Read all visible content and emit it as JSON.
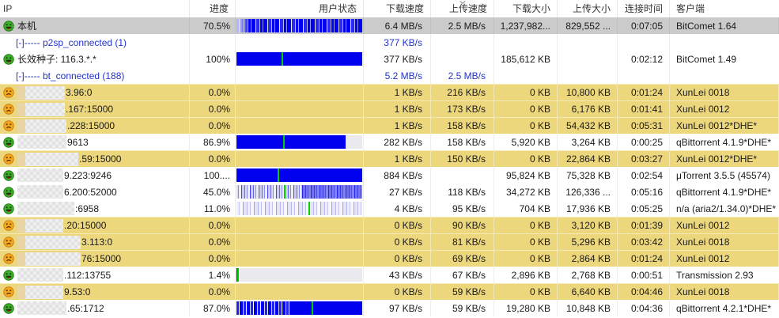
{
  "header": {
    "columns": [
      {
        "key": "ip",
        "label": "IP",
        "align": "left"
      },
      {
        "key": "progress",
        "label": "进度",
        "align": "right"
      },
      {
        "key": "status",
        "label": "用户状态",
        "align": "right"
      },
      {
        "key": "dspeed",
        "label": "下载速度",
        "align": "right",
        "sorted": true
      },
      {
        "key": "uspeed",
        "label": "上传速度",
        "align": "right",
        "sort_indicator": true
      },
      {
        "key": "dsize",
        "label": "下载大小",
        "align": "right"
      },
      {
        "key": "usize",
        "label": "上传大小",
        "align": "right"
      },
      {
        "key": "time",
        "label": "连接时间",
        "align": "right"
      },
      {
        "key": "client",
        "label": "客户端",
        "align": "left"
      }
    ]
  },
  "colors": {
    "bar_blue": "#0000ee",
    "bar_green": "#00d300",
    "row_yellow": "#edd77d",
    "row_selected": "#cbcbcb",
    "link_blue": "#2233cc",
    "bar_empty": "#e9e9ee"
  },
  "icons": {
    "smile_green": "green-smiley-face-icon",
    "frown_orange": "orange-frown-face-icon"
  },
  "rows": [
    {
      "kind": "peer",
      "highlight": "selected",
      "icon": "smile_green",
      "masked": false,
      "ip": "本机",
      "progress": "70.5%",
      "bar": {
        "style": "striped",
        "fill": 100,
        "green": null
      },
      "dspeed": "6.4 MB/s",
      "uspeed": "2.5 MB/s",
      "dsize": "1,237,982...",
      "usize": "829,552 ...",
      "time": "0:07:05",
      "client": "BitComet 1.64"
    },
    {
      "kind": "group",
      "highlight": "none",
      "label": "[-]----- p2sp_connected (1)",
      "dspeed": "377 KB/s",
      "uspeed": "",
      "dsize": "",
      "usize": "",
      "time": "",
      "client": ""
    },
    {
      "kind": "peer",
      "highlight": "none",
      "icon": "smile_green",
      "masked": false,
      "ip": "长效种子: 116.3.*.*",
      "progress": "100%",
      "bar": {
        "style": "solid",
        "fill": 100,
        "green": 36
      },
      "dspeed": "377 KB/s",
      "uspeed": "",
      "dsize": "185,612 KB",
      "usize": "",
      "time": "0:02:12",
      "client": "BitComet 1.49"
    },
    {
      "kind": "group",
      "highlight": "none",
      "label": "[-]----- bt_connected (188)",
      "dspeed": "5.2 MB/s",
      "uspeed": "2.5 MB/s",
      "dsize": "",
      "usize": "",
      "time": "",
      "client": ""
    },
    {
      "kind": "peer",
      "highlight": "yellow",
      "icon": "frown_orange",
      "masked": true,
      "mask_width": 60,
      "ip": "3.96:0",
      "progress": "0.0%",
      "bar": null,
      "dspeed": "1 KB/s",
      "uspeed": "216 KB/s",
      "dsize": "0 KB",
      "usize": "10,800 KB",
      "time": "0:01:24",
      "client": "XunLei 0018"
    },
    {
      "kind": "peer",
      "highlight": "yellow",
      "icon": "frown_orange",
      "masked": true,
      "mask_width": 60,
      "ip": ".167:15000",
      "progress": "0.0%",
      "bar": null,
      "dspeed": "1 KB/s",
      "uspeed": "173 KB/s",
      "dsize": "0 KB",
      "usize": "6,176 KB",
      "time": "0:01:41",
      "client": "XunLei 0012"
    },
    {
      "kind": "peer",
      "highlight": "yellow",
      "icon": "frown_orange",
      "masked": true,
      "mask_width": 62,
      "ip": ".228:15000",
      "progress": "0.0%",
      "bar": null,
      "dspeed": "1 KB/s",
      "uspeed": "158 KB/s",
      "dsize": "0 KB",
      "usize": "54,432 KB",
      "time": "0:05:31",
      "client": "XunLei 0012*DHE*"
    },
    {
      "kind": "peer",
      "highlight": "none",
      "icon": "smile_green",
      "masked": true,
      "mask_width": 62,
      "ip": "9613",
      "progress": "86.9%",
      "bar": {
        "style": "solid",
        "fill": 87,
        "green": 37
      },
      "dspeed": "282 KB/s",
      "uspeed": "158 KB/s",
      "dsize": "5,920 KB",
      "usize": "3,264 KB",
      "time": "0:00:25",
      "client": "qBittorrent 4.1.9*DHE*"
    },
    {
      "kind": "peer",
      "highlight": "yellow",
      "icon": "frown_orange",
      "masked": true,
      "mask_width": 77,
      "ip": ".59:15000",
      "progress": "0.0%",
      "bar": null,
      "dspeed": "1 KB/s",
      "uspeed": "150 KB/s",
      "dsize": "0 KB",
      "usize": "22,864 KB",
      "time": "0:03:27",
      "client": "XunLei 0012*DHE*"
    },
    {
      "kind": "peer",
      "highlight": "none",
      "icon": "smile_green",
      "masked": true,
      "mask_width": 58,
      "ip": "9.223:9246",
      "progress": "100....",
      "bar": {
        "style": "solid",
        "fill": 100,
        "green": 33
      },
      "dspeed": "884 KB/s",
      "uspeed": "",
      "dsize": "95,824 KB",
      "usize": "75,328 KB",
      "time": "0:02:54",
      "client": "μTorrent 3.5.5 (45574)"
    },
    {
      "kind": "peer",
      "highlight": "none",
      "icon": "smile_green",
      "masked": true,
      "mask_width": 58,
      "ip": "6.200:52000",
      "progress": "45.0%",
      "bar": {
        "style": "striped-light",
        "fill": 100,
        "green": 38
      },
      "dspeed": "27 KB/s",
      "uspeed": "118 KB/s",
      "dsize": "34,272 KB",
      "usize": "126,336 ...",
      "time": "0:05:16",
      "client": "qBittorrent 4.1.9*DHE*"
    },
    {
      "kind": "peer",
      "highlight": "none",
      "icon": "smile_green",
      "masked": true,
      "mask_width": 72,
      "ip": ":6958",
      "progress": "11.0%",
      "bar": {
        "style": "striped-faint",
        "fill": 100,
        "green": 57
      },
      "dspeed": "4 KB/s",
      "uspeed": "95 KB/s",
      "dsize": "704 KB",
      "usize": "17,936 KB",
      "time": "0:05:25",
      "client": "n/a (aria2/1.34.0)*DHE*"
    },
    {
      "kind": "peer",
      "highlight": "yellow",
      "icon": "frown_orange",
      "masked": true,
      "mask_width": 58,
      "ip": ".20:15000",
      "progress": "0.0%",
      "bar": null,
      "dspeed": "0 KB/s",
      "uspeed": "90 KB/s",
      "dsize": "0 KB",
      "usize": "3,120 KB",
      "time": "0:01:39",
      "client": "XunLei 0012"
    },
    {
      "kind": "peer",
      "highlight": "yellow",
      "icon": "frown_orange",
      "masked": true,
      "mask_width": 80,
      "ip": "3.113:0",
      "progress": "0.0%",
      "bar": null,
      "dspeed": "0 KB/s",
      "uspeed": "81 KB/s",
      "dsize": "0 KB",
      "usize": "5,296 KB",
      "time": "0:03:42",
      "client": "XunLei 0018"
    },
    {
      "kind": "peer",
      "highlight": "yellow",
      "icon": "frown_orange",
      "masked": true,
      "mask_width": 80,
      "ip": "76:15000",
      "progress": "0.0%",
      "bar": null,
      "dspeed": "0 KB/s",
      "uspeed": "69 KB/s",
      "dsize": "0 KB",
      "usize": "2,864 KB",
      "time": "0:01:24",
      "client": "XunLei 0012"
    },
    {
      "kind": "peer",
      "highlight": "none",
      "icon": "smile_green",
      "masked": true,
      "mask_width": 58,
      "ip": ".112:13755",
      "progress": "1.4%",
      "bar": {
        "style": "solid",
        "fill": 2,
        "green": 0.5
      },
      "dspeed": "43 KB/s",
      "uspeed": "67 KB/s",
      "dsize": "2,896 KB",
      "usize": "2,768 KB",
      "time": "0:00:51",
      "client": "Transmission 2.93"
    },
    {
      "kind": "peer",
      "highlight": "yellow",
      "icon": "frown_orange",
      "masked": true,
      "mask_width": 58,
      "ip": "9.53:0",
      "progress": "0.0%",
      "bar": null,
      "dspeed": "0 KB/s",
      "uspeed": "59 KB/s",
      "dsize": "0 KB",
      "usize": "6,640 KB",
      "time": "0:04:46",
      "client": "XunLei 0018"
    },
    {
      "kind": "peer",
      "highlight": "none",
      "icon": "smile_green",
      "masked": true,
      "mask_width": 62,
      "ip": ".65:1712",
      "progress": "87.0%",
      "bar": {
        "style": "striped-dense",
        "fill": 100,
        "green": 60
      },
      "dspeed": "97 KB/s",
      "uspeed": "59 KB/s",
      "dsize": "19,280 KB",
      "usize": "10,848 KB",
      "time": "0:04:36",
      "client": "qBittorrent 4.2.1*DHE*"
    }
  ]
}
